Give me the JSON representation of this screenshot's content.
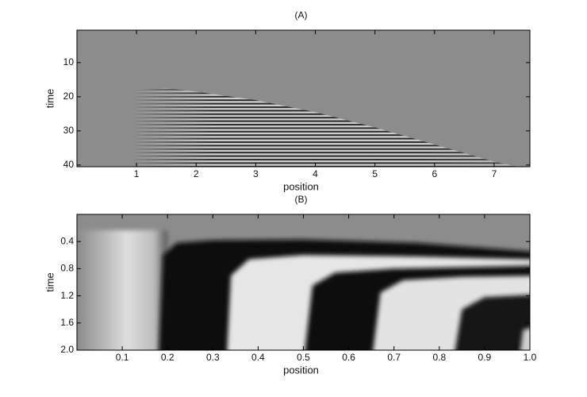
{
  "chart_data": [
    {
      "type": "heatmap",
      "title": "(A)",
      "xlabel": "position",
      "ylabel": "time",
      "xlim": [
        0,
        7.6
      ],
      "xticks": [
        1,
        2,
        3,
        4,
        5,
        6,
        7
      ],
      "ylim": [
        0.5,
        40.5
      ],
      "yticks": [
        10,
        20,
        30,
        40
      ],
      "y_reversed": true
    },
    {
      "type": "heatmap",
      "title": "(B)",
      "xlabel": "position",
      "ylabel": "time",
      "xlim": [
        0,
        1
      ],
      "xticks": [
        0.1,
        0.2,
        0.3,
        0.4,
        0.5,
        0.6,
        0.7,
        0.8,
        0.9,
        {
          "value": 1,
          "label": "1.0"
        }
      ],
      "ylim": [
        0,
        2
      ],
      "yticks": [
        0.4,
        0.8,
        1.2,
        1.6,
        {
          "value": 2,
          "label": "2.0"
        }
      ],
      "y_reversed": true
    }
  ]
}
